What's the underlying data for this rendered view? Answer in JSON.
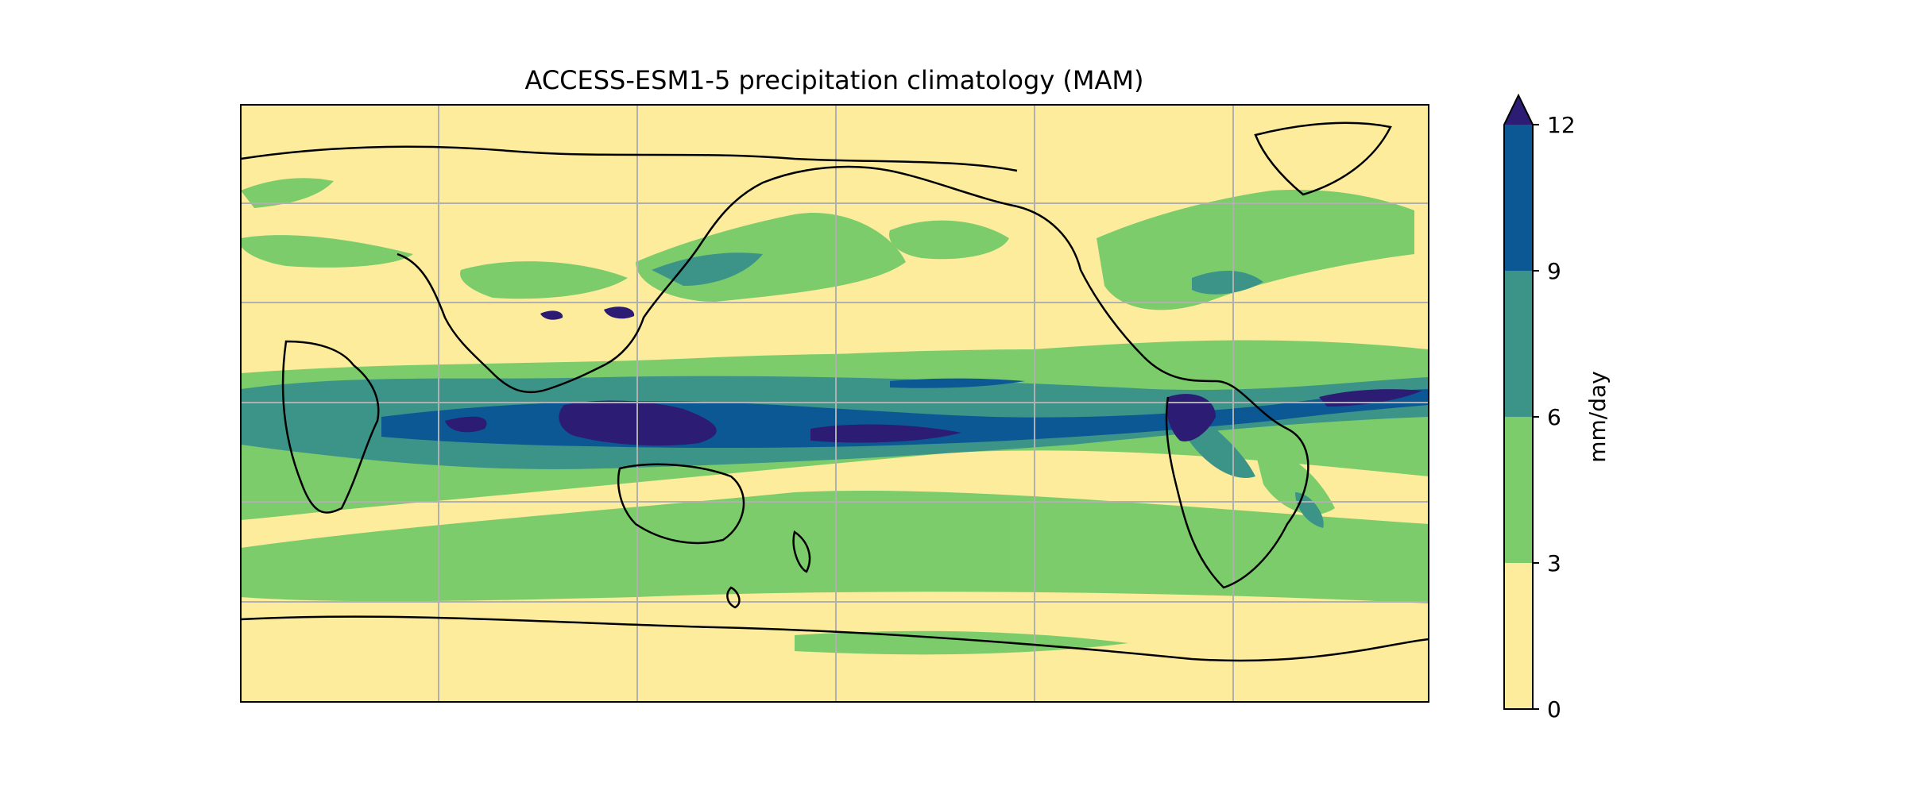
{
  "title": "ACCESS-ESM1-5 precipitation climatology (MAM)",
  "map": {
    "projection": "PlateCarree",
    "central_longitude": 180,
    "coastlines": true,
    "gridlines": true,
    "ocean_background": "#fcec9c"
  },
  "colorbar": {
    "label": "mm/day",
    "ticks": [
      "0",
      "3",
      "6",
      "9",
      "12"
    ],
    "levels": [
      0,
      3,
      6,
      9,
      12
    ],
    "extend": "max",
    "colors": [
      "#fcec9c",
      "#7ccc6c",
      "#3c9488",
      "#0c5894",
      "#2c1c74"
    ]
  },
  "chart_data": {
    "type": "heatmap",
    "title": "ACCESS-ESM1-5 precipitation climatology (MAM)",
    "colorbar_label": "mm/day",
    "levels": [
      0,
      3,
      6,
      9,
      12
    ],
    "extend": "max",
    "colors": [
      "#fcec9c",
      "#7ccc6c",
      "#3c9488",
      "#0c5894",
      "#2c1c74"
    ]
  }
}
